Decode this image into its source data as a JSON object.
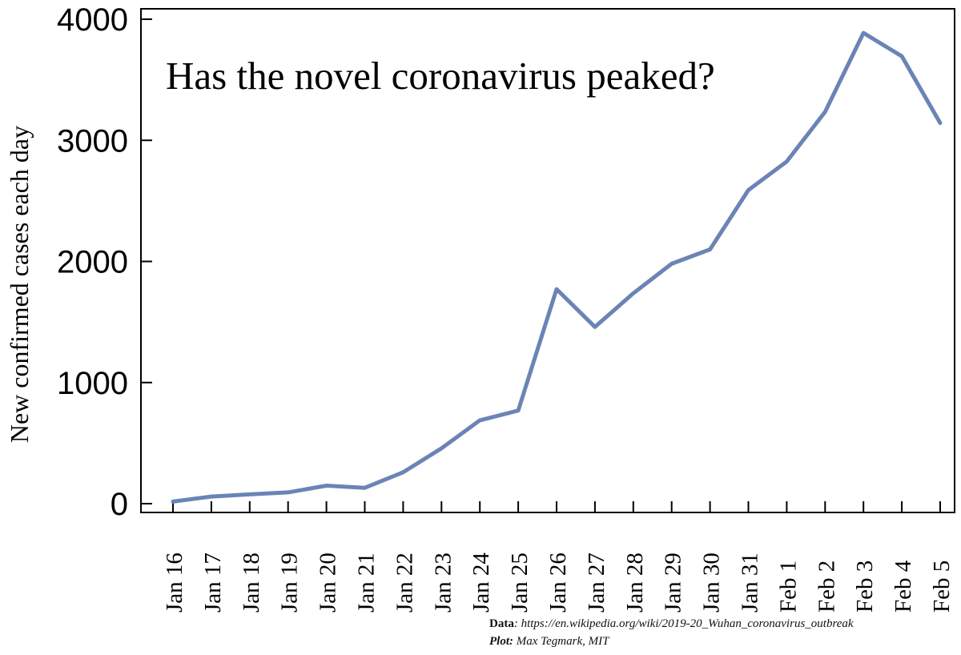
{
  "chart_data": {
    "type": "line",
    "title": "Has the novel coronavirus peaked?",
    "xlabel": "",
    "ylabel": "New confirmed cases each day",
    "categories": [
      "Jan 16",
      "Jan 17",
      "Jan 18",
      "Jan 19",
      "Jan 20",
      "Jan 21",
      "Jan 22",
      "Jan 23",
      "Jan 24",
      "Jan 25",
      "Jan 26",
      "Jan 27",
      "Jan 28",
      "Jan 29",
      "Jan 30",
      "Jan 31",
      "Feb 1",
      "Feb 2",
      "Feb 3",
      "Feb 4",
      "Feb 5"
    ],
    "values": [
      17,
      59,
      77,
      93,
      149,
      131,
      259,
      457,
      688,
      769,
      1771,
      1459,
      1737,
      1981,
      2099,
      2589,
      2825,
      3235,
      3887,
      3694,
      3143
    ],
    "ylim": [
      0,
      4000
    ],
    "yticks": [
      "0",
      "1000",
      "2000",
      "3000",
      "4000"
    ],
    "grid": false,
    "legend": "none",
    "line_color": "#6a84b5"
  },
  "credits": {
    "data_label": "Data",
    "data_sep": ":",
    "data_url": "https://en.wikipedia.org/wiki/2019-20_Wuhan_coronavirus_outbreak",
    "plot_label": "Plot:",
    "plot_value": "Max Tegmark, MIT"
  }
}
